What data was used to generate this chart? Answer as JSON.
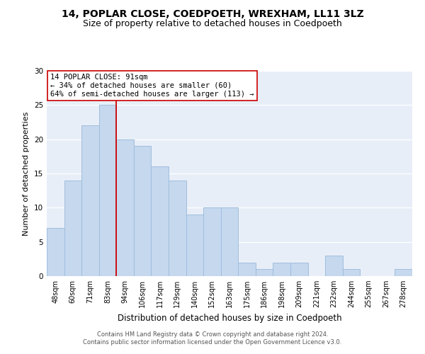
{
  "title1": "14, POPLAR CLOSE, COEDPOETH, WREXHAM, LL11 3LZ",
  "title2": "Size of property relative to detached houses in Coedpoeth",
  "xlabel": "Distribution of detached houses by size in Coedpoeth",
  "ylabel": "Number of detached properties",
  "categories": [
    "48sqm",
    "60sqm",
    "71sqm",
    "83sqm",
    "94sqm",
    "106sqm",
    "117sqm",
    "129sqm",
    "140sqm",
    "152sqm",
    "163sqm",
    "175sqm",
    "186sqm",
    "198sqm",
    "209sqm",
    "221sqm",
    "232sqm",
    "244sqm",
    "255sqm",
    "267sqm",
    "278sqm"
  ],
  "values": [
    7,
    14,
    22,
    25,
    20,
    19,
    16,
    14,
    9,
    10,
    10,
    2,
    1,
    2,
    2,
    0,
    3,
    1,
    0,
    0,
    1
  ],
  "bar_color": "#c5d8ee",
  "bar_edge_color": "#a0bedd",
  "vline_x_idx": 3,
  "vline_color": "#cc0000",
  "annotation_line1": "14 POPLAR CLOSE: 91sqm",
  "annotation_line2": "← 34% of detached houses are smaller (60)",
  "annotation_line3": "64% of semi-detached houses are larger (113) →",
  "annotation_box_color": "#ffffff",
  "annotation_box_edge_color": "#cc0000",
  "ylim": [
    0,
    30
  ],
  "yticks": [
    0,
    5,
    10,
    15,
    20,
    25,
    30
  ],
  "footer1": "Contains HM Land Registry data © Crown copyright and database right 2024.",
  "footer2": "Contains public sector information licensed under the Open Government Licence v3.0.",
  "plot_bg_color": "#e8eef8",
  "fig_background": "#ffffff",
  "title1_fontsize": 10,
  "title2_fontsize": 9,
  "xlabel_fontsize": 8.5,
  "ylabel_fontsize": 8,
  "annotation_fontsize": 7.5,
  "tick_fontsize": 7,
  "ytick_fontsize": 7.5
}
